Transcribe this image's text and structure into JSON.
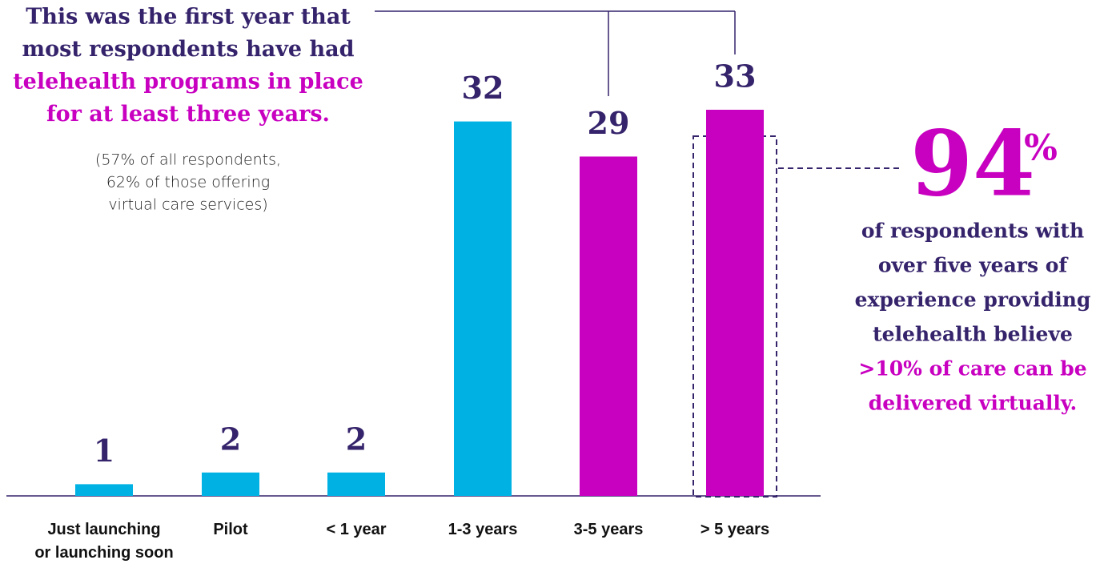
{
  "chart_data": {
    "type": "bar",
    "categories": [
      "Just launching\nor launching soon",
      "Pilot",
      "< 1 year",
      "1-3 years",
      "3-5 years",
      "> 5 years"
    ],
    "values": [
      1,
      2,
      2,
      32,
      29,
      33
    ],
    "colors": [
      "#00b2e3",
      "#00b2e3",
      "#00b2e3",
      "#00b2e3",
      "#c800c0",
      "#c800c0"
    ],
    "ylim": [
      0,
      33
    ],
    "headline": {
      "lines": [
        "This was the first year that",
        "most respondents have had"
      ],
      "highlight_lines": [
        "telehealth programs in place",
        "for at least three years."
      ],
      "note_lines": [
        "(57% of all respondents,",
        "62% of those offering",
        "virtual care services)"
      ]
    },
    "callout": {
      "number": "94",
      "unit": "%",
      "lines": [
        "of respondents with",
        "over five years of",
        "experience providing",
        "telehealth believe"
      ],
      "highlight_lines": [
        ">10% of care can be",
        "delivered virtually."
      ]
    }
  }
}
